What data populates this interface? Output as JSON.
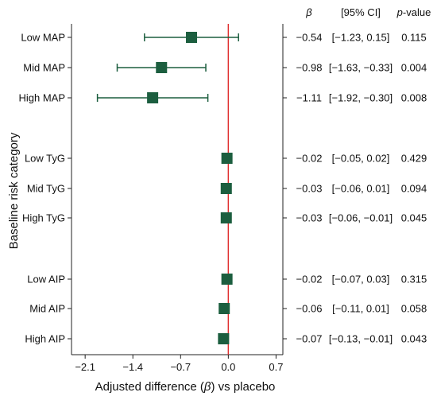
{
  "chart_data": {
    "type": "forest",
    "xlabel_parts": [
      "Adjusted difference (",
      "β",
      ") vs placebo"
    ],
    "ylabel": "Baseline risk category",
    "xlim": [
      -2.3,
      0.8
    ],
    "xticks": [
      -2.1,
      -1.4,
      -0.7,
      0.0,
      0.7
    ],
    "xtick_labels": [
      "−2.1",
      "−1.4",
      "−0.7",
      "0.0",
      "0.7"
    ],
    "reference_line": 0,
    "grid": false,
    "headers": {
      "beta": "β",
      "ci": "[95% CI]",
      "p_prefix": "p",
      "p_suffix": "-value"
    },
    "rows": [
      {
        "label": "Low MAP",
        "beta": -0.54,
        "lower": -1.23,
        "upper": 0.15,
        "beta_text": "−0.54",
        "ci_text": "[−1.23, 0.15]",
        "p_text": "0.115",
        "whisker": true
      },
      {
        "label": "Mid MAP",
        "beta": -0.98,
        "lower": -1.63,
        "upper": -0.33,
        "beta_text": "−0.98",
        "ci_text": "[−1.63, −0.33]",
        "p_text": "0.004",
        "whisker": true
      },
      {
        "label": "High MAP",
        "beta": -1.11,
        "lower": -1.92,
        "upper": -0.3,
        "beta_text": "−1.11",
        "ci_text": "[−1.92, −0.30]",
        "p_text": "0.008",
        "whisker": true
      },
      {
        "label": "Low TyG",
        "beta": -0.02,
        "lower": -0.05,
        "upper": 0.02,
        "beta_text": "−0.02",
        "ci_text": "[−0.05, 0.02]",
        "p_text": "0.429",
        "whisker": false
      },
      {
        "label": "Mid TyG",
        "beta": -0.03,
        "lower": -0.06,
        "upper": 0.01,
        "beta_text": "−0.03",
        "ci_text": "[−0.06, 0.01]",
        "p_text": "0.094",
        "whisker": false
      },
      {
        "label": "High TyG",
        "beta": -0.03,
        "lower": -0.06,
        "upper": -0.01,
        "beta_text": "−0.03",
        "ci_text": "[−0.06, −0.01]",
        "p_text": "0.045",
        "whisker": false
      },
      {
        "label": "Low AIP",
        "beta": -0.02,
        "lower": -0.07,
        "upper": 0.03,
        "beta_text": "−0.02",
        "ci_text": "[−0.07, 0.03]",
        "p_text": "0.315",
        "whisker": false
      },
      {
        "label": "Mid AIP",
        "beta": -0.06,
        "lower": -0.11,
        "upper": 0.01,
        "beta_text": "−0.06",
        "ci_text": "[−0.11, 0.01]",
        "p_text": "0.058",
        "whisker": false
      },
      {
        "label": "High AIP",
        "beta": -0.07,
        "lower": -0.13,
        "upper": -0.01,
        "beta_text": "−0.07",
        "ci_text": "[−0.13, −0.01]",
        "p_text": "0.043",
        "whisker": false
      }
    ],
    "colors": {
      "marker": "#1c5e3f",
      "reference": "#e03030",
      "axis": "#222222"
    }
  }
}
